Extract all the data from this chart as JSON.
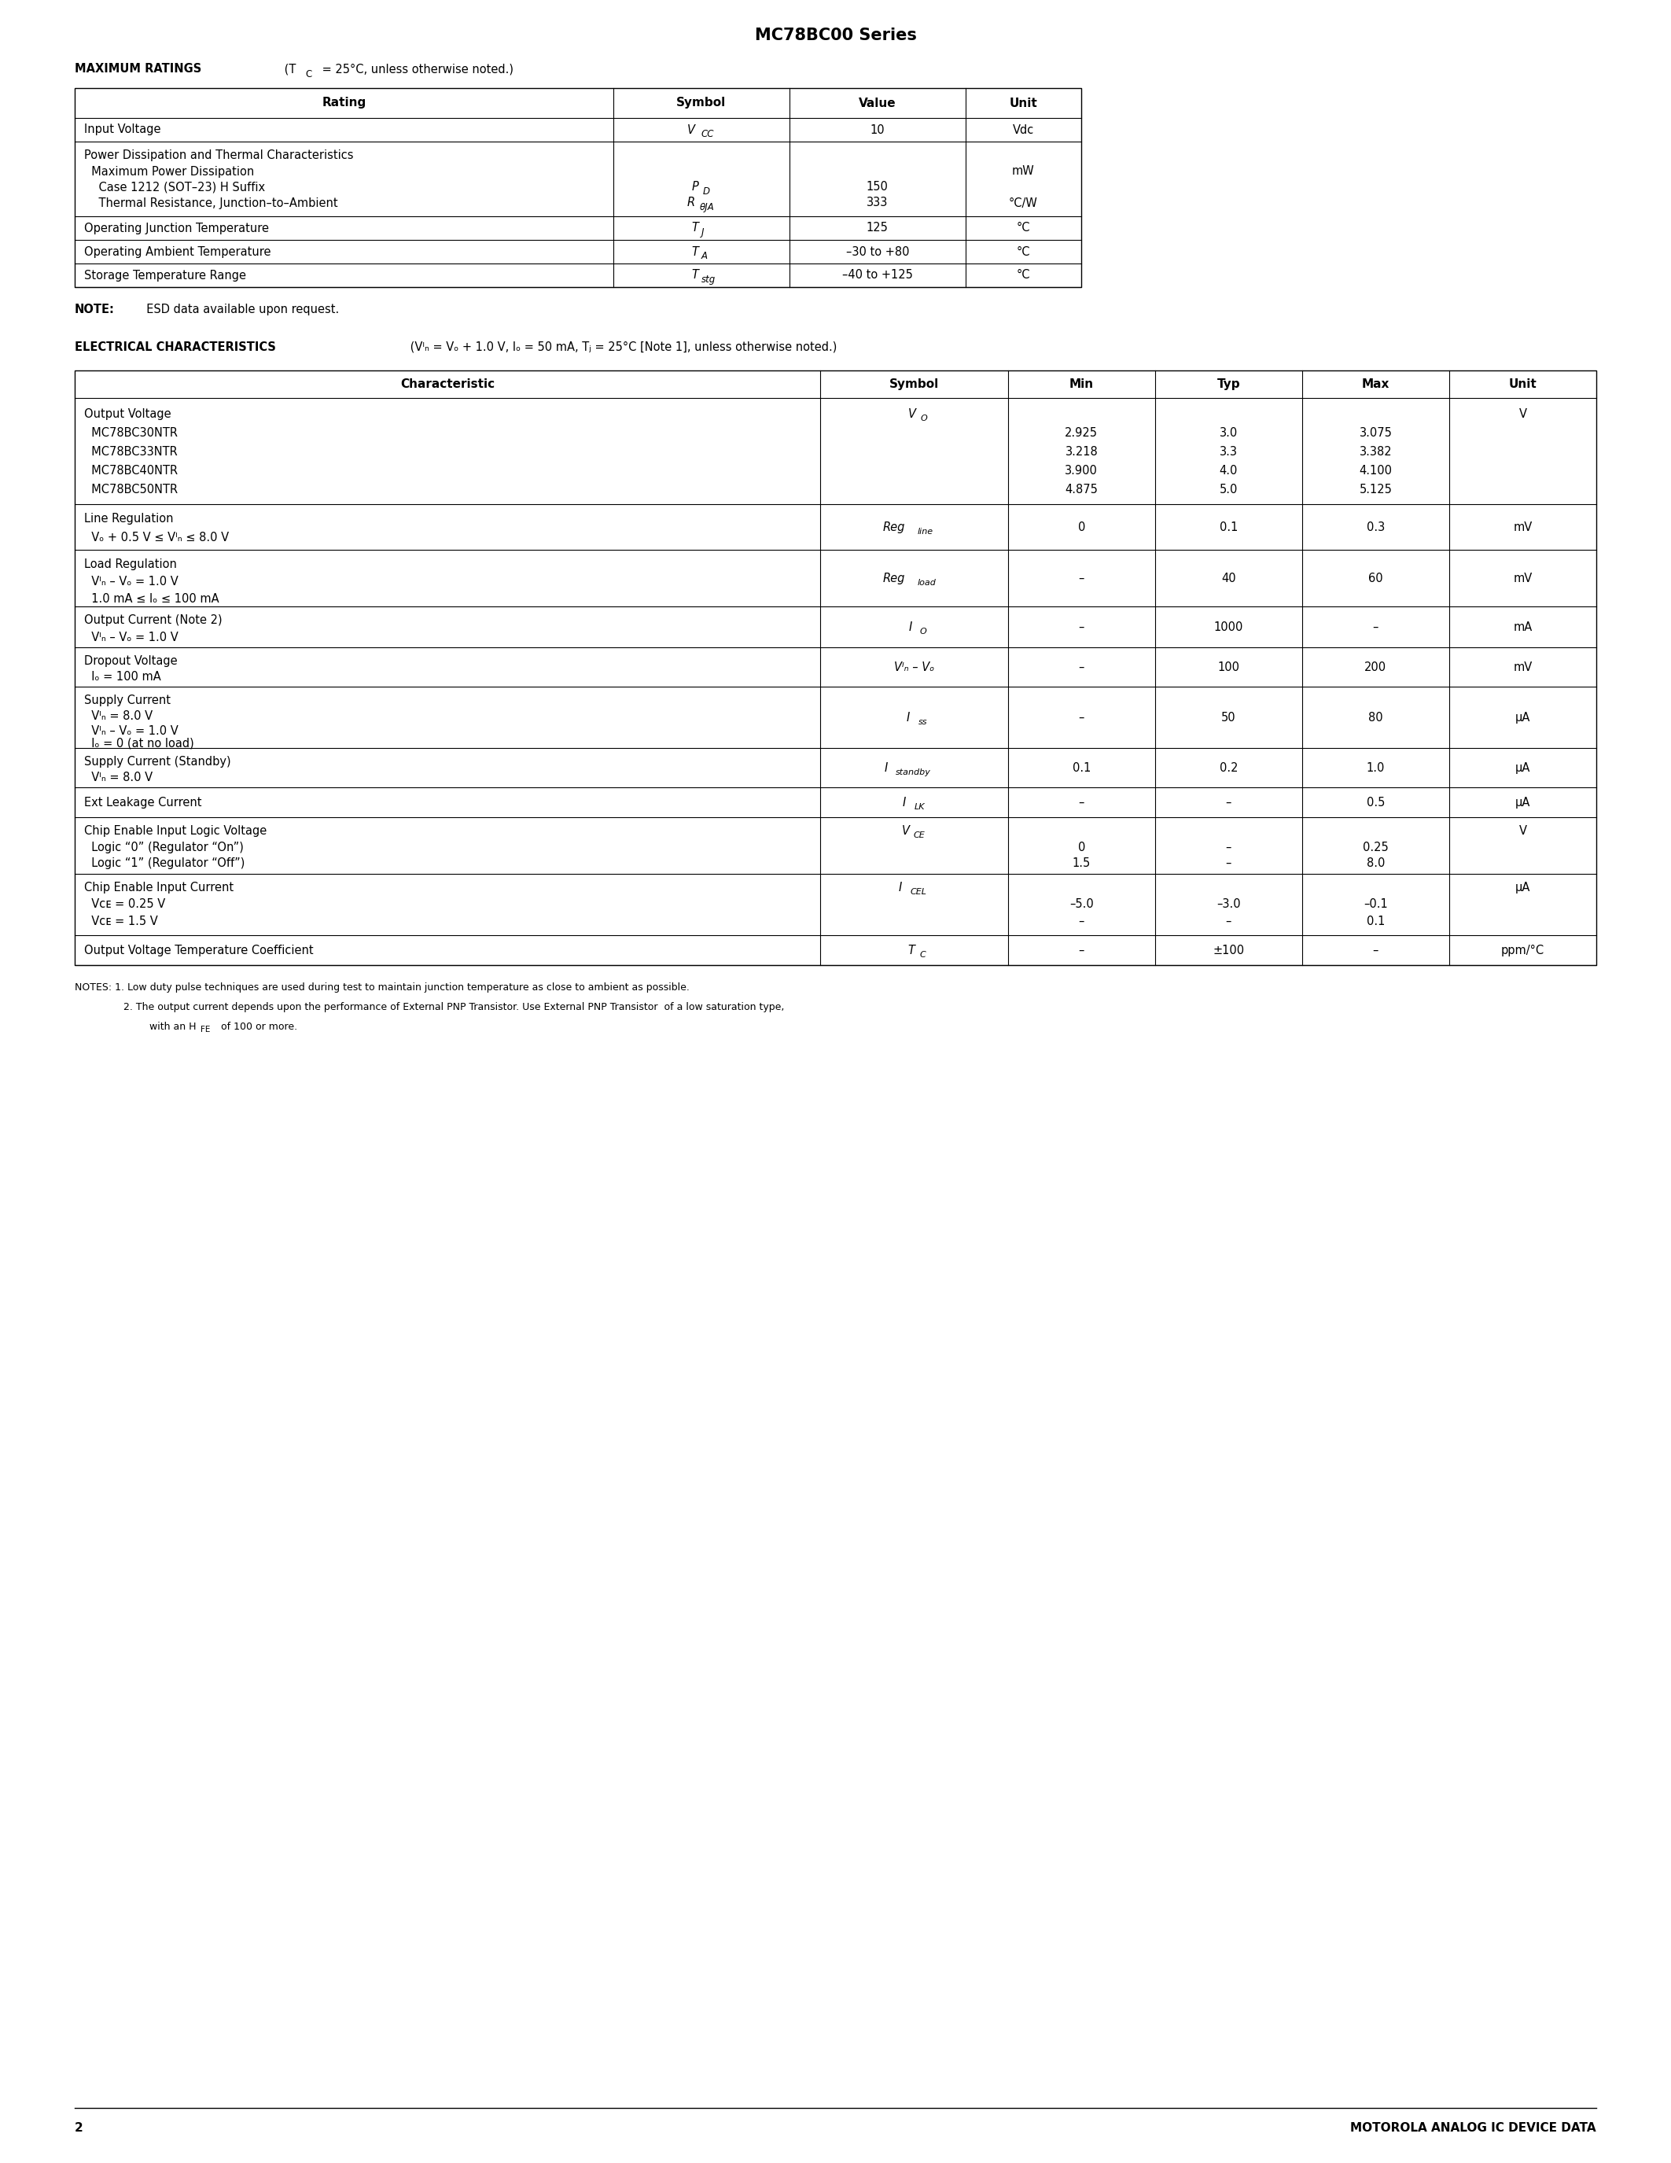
{
  "title": "MC78BC00 Series",
  "page_number": "2",
  "footer_text": "MOTOROLA ANALOG IC DEVICE DATA",
  "bg_color": "#ffffff"
}
